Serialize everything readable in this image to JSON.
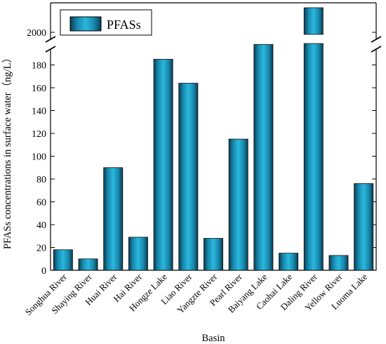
{
  "chart_data": {
    "type": "bar",
    "xlabel": "Basin",
    "ylabel": "PFASs concentrations in surface water（ng/L）",
    "categories": [
      "Songhua River",
      "Shaying River",
      "Huai River",
      "Hai River",
      "Hongze Lake",
      "Liao River",
      "Yangzte River",
      "Pearl River",
      "Baiyang Lake",
      "Caohai Lake",
      "Daling River",
      "Yellow River",
      "Luoma Lake"
    ],
    "series": [
      {
        "name": "PFASs",
        "values": [
          18,
          10,
          90,
          29,
          185,
          164,
          28,
          115,
          198,
          15,
          2050,
          13,
          76
        ]
      }
    ],
    "y_axis": {
      "broken": true,
      "lower_segment": {
        "range": [
          0,
          200
        ],
        "ticks": [
          "0",
          "20",
          "40",
          "60",
          "80",
          "100",
          "120",
          "140",
          "160",
          "180"
        ]
      },
      "upper_segment": {
        "range": [
          1990,
          2060
        ],
        "ticks": [
          "2000"
        ]
      }
    },
    "legend": {
      "position": "top-left",
      "entries": [
        "PFASs"
      ]
    },
    "bar_color": "#1f9bc0",
    "grid": false
  }
}
